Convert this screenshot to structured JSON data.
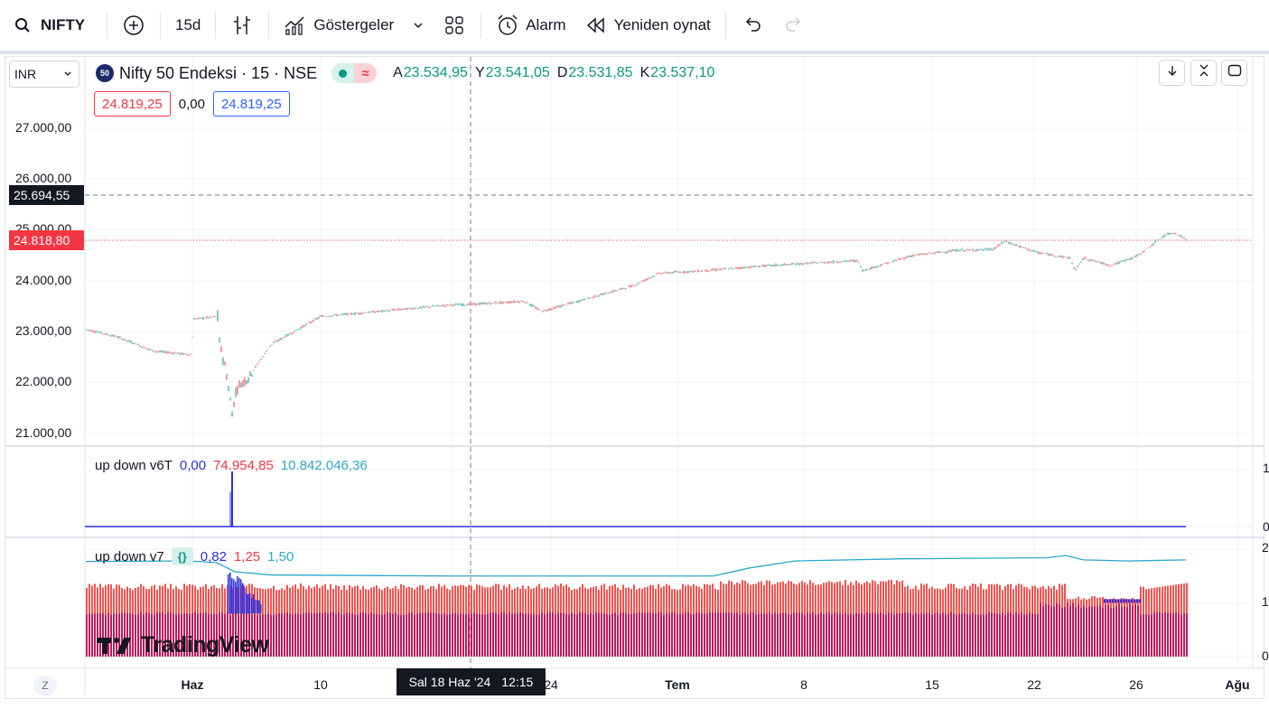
{
  "toolbar": {
    "symbol": "NIFTY",
    "interval": "15d",
    "indicators_label": "Göstergeler",
    "alarm_label": "Alarm",
    "replay_label": "Yeniden oynat"
  },
  "legend": {
    "currency": "INR",
    "logo_text": "50",
    "title": "Nifty 50 Endeksi · 15 · NSE",
    "ohlc": [
      {
        "k": "A",
        "v": "23.534,95"
      },
      {
        "k": "Y",
        "v": "23.541,05"
      },
      {
        "k": "D",
        "v": "23.531,85"
      },
      {
        "k": "K",
        "v": "23.537,10"
      }
    ],
    "bid": "24.819,25",
    "spread": "0,00",
    "ask": "24.819,25"
  },
  "price_axis": {
    "ticks": [
      "27.000,00",
      "26.000,00",
      "25.000,00",
      "24.000,00",
      "23.000,00",
      "22.000,00",
      "21.000,00"
    ],
    "crosshair_price": "25.694,55",
    "last_price": "24.818,80"
  },
  "indicator1": {
    "name": "up down v6T",
    "v1": "0,00",
    "v2": "74.954,85",
    "v3": "10.842.046,36",
    "axis": [
      "1",
      "0"
    ]
  },
  "indicator2": {
    "name": "up down v7",
    "badge": "{}",
    "v1": "0,82",
    "v2": "1,25",
    "v3": "1,50",
    "axis": [
      "2",
      "1",
      "0"
    ]
  },
  "time_axis": {
    "zoom_btn": "Z",
    "labels": [
      {
        "t": "Haz",
        "bold": true
      },
      {
        "t": "10",
        "bold": false
      },
      {
        "t": "24",
        "bold": false
      },
      {
        "t": "Tem",
        "bold": true
      },
      {
        "t": "8",
        "bold": false
      },
      {
        "t": "15",
        "bold": false
      },
      {
        "t": "22",
        "bold": false
      },
      {
        "t": "26",
        "bold": false
      },
      {
        "t": "Ağu",
        "bold": true
      }
    ],
    "crosshair_date": "Sal 18 Haz '24",
    "crosshair_time": "12:15"
  },
  "watermark": "TradingView",
  "colors": {
    "up": "#089981",
    "down": "#f23645",
    "ind_blue": "#2b2fe0",
    "ind_red": "#f23645",
    "ind_cyan": "#2ca7c9",
    "hist_pink": "#f7524e",
    "hist_maroon": "#c2185b"
  }
}
